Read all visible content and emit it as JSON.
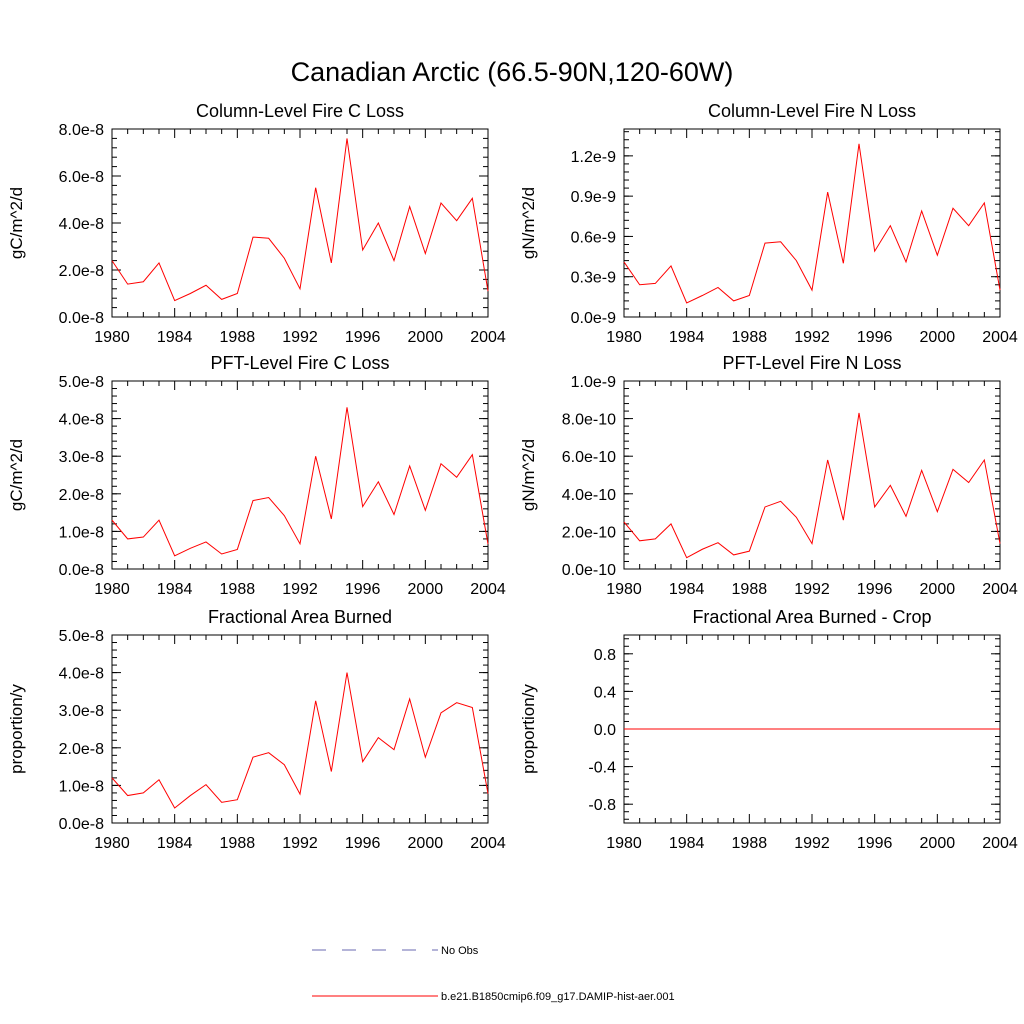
{
  "title": "Canadian Arctic (66.5-90N,120-60W)",
  "colors": {
    "model": "#ff0000",
    "obs": "#6a6ab0"
  },
  "legend": {
    "obs_label": "No Obs",
    "model_label": "b.e21.B1850cmip6.f09_g17.DAMIP-hist-aer.001"
  },
  "chart_data": [
    {
      "type": "line",
      "title": "Column-Level Fire C Loss",
      "ylabel": "gC/m^2/d",
      "xlim": [
        1980,
        2004
      ],
      "ylim": [
        0,
        8e-08
      ],
      "x_ticks": [
        1980,
        1984,
        1988,
        1992,
        1996,
        2000,
        2004
      ],
      "y_ticks": [
        "0.0e-8",
        "2.0e-8",
        "4.0e-8",
        "6.0e-8",
        "8.0e-8"
      ],
      "y_tick_values": [
        0,
        2e-08,
        4e-08,
        6e-08,
        8e-08
      ],
      "series": [
        {
          "x": [
            1980,
            1981,
            1982,
            1983,
            1984,
            1985,
            1986,
            1987,
            1988,
            1989,
            1990,
            1991,
            1992,
            1993,
            1994,
            1995,
            1996,
            1997,
            1998,
            1999,
            2000,
            2001,
            2002,
            2003,
            2004
          ],
          "values": [
            2.4e-08,
            1.4e-08,
            1.5e-08,
            2.3e-08,
            7e-09,
            1e-08,
            1.35e-08,
            7.5e-09,
            1e-08,
            3.4e-08,
            3.35e-08,
            2.5e-08,
            1.2e-08,
            5.5e-08,
            2.3e-08,
            7.6e-08,
            2.85e-08,
            4e-08,
            2.4e-08,
            4.7e-08,
            2.7e-08,
            4.85e-08,
            4.1e-08,
            5.05e-08,
            1.1e-08
          ]
        }
      ]
    },
    {
      "type": "line",
      "title": "Column-Level Fire N Loss",
      "ylabel": "gN/m^2/d",
      "xlim": [
        1980,
        2004
      ],
      "ylim": [
        0,
        1.4e-09
      ],
      "x_ticks": [
        1980,
        1984,
        1988,
        1992,
        1996,
        2000,
        2004
      ],
      "y_ticks": [
        "0.0e-9",
        "0.3e-9",
        "0.6e-9",
        "0.9e-9",
        "1.2e-9"
      ],
      "y_tick_values": [
        0,
        3e-10,
        6e-10,
        9e-10,
        1.2e-09
      ],
      "series": [
        {
          "x": [
            1980,
            1981,
            1982,
            1983,
            1984,
            1985,
            1986,
            1987,
            1988,
            1989,
            1990,
            1991,
            1992,
            1993,
            1994,
            1995,
            1996,
            1997,
            1998,
            1999,
            2000,
            2001,
            2002,
            2003,
            2004
          ],
          "values": [
            4.1e-10,
            2.4e-10,
            2.5e-10,
            3.8e-10,
            1.05e-10,
            1.6e-10,
            2.2e-10,
            1.2e-10,
            1.6e-10,
            5.5e-10,
            5.6e-10,
            4.2e-10,
            2e-10,
            9.3e-10,
            4e-10,
            1.29e-09,
            4.9e-10,
            6.8e-10,
            4.1e-10,
            7.9e-10,
            4.6e-10,
            8.1e-10,
            6.8e-10,
            8.5e-10,
            2e-10
          ]
        }
      ]
    },
    {
      "type": "line",
      "title": "PFT-Level Fire C Loss",
      "ylabel": "gC/m^2/d",
      "xlim": [
        1980,
        2004
      ],
      "ylim": [
        0,
        5e-08
      ],
      "x_ticks": [
        1980,
        1984,
        1988,
        1992,
        1996,
        2000,
        2004
      ],
      "y_ticks": [
        "0.0e-8",
        "1.0e-8",
        "2.0e-8",
        "3.0e-8",
        "4.0e-8",
        "5.0e-8"
      ],
      "y_tick_values": [
        0,
        1e-08,
        2e-08,
        3e-08,
        4e-08,
        5e-08
      ],
      "series": [
        {
          "x": [
            1980,
            1981,
            1982,
            1983,
            1984,
            1985,
            1986,
            1987,
            1988,
            1989,
            1990,
            1991,
            1992,
            1993,
            1994,
            1995,
            1996,
            1997,
            1998,
            1999,
            2000,
            2001,
            2002,
            2003,
            2004
          ],
          "values": [
            1.3e-08,
            8e-09,
            8.5e-09,
            1.3e-08,
            3.5e-09,
            5.5e-09,
            7.2e-09,
            4e-09,
            5.2e-09,
            1.82e-08,
            1.9e-08,
            1.42e-08,
            6.7e-09,
            3e-08,
            1.33e-08,
            4.3e-08,
            1.66e-08,
            2.32e-08,
            1.45e-08,
            2.74e-08,
            1.56e-08,
            2.8e-08,
            2.44e-08,
            3.04e-08,
            6.6e-09
          ]
        }
      ]
    },
    {
      "type": "line",
      "title": "PFT-Level Fire N Loss",
      "ylabel": "gN/m^2/d",
      "xlim": [
        1980,
        2004
      ],
      "ylim": [
        0,
        1e-09
      ],
      "x_ticks": [
        1980,
        1984,
        1988,
        1992,
        1996,
        2000,
        2004
      ],
      "y_ticks": [
        "0.0e-10",
        "2.0e-10",
        "4.0e-10",
        "6.0e-10",
        "8.0e-10",
        "1.0e-9"
      ],
      "y_tick_values": [
        0,
        2e-10,
        4e-10,
        6e-10,
        8e-10,
        1e-09
      ],
      "series": [
        {
          "x": [
            1980,
            1981,
            1982,
            1983,
            1984,
            1985,
            1986,
            1987,
            1988,
            1989,
            1990,
            1991,
            1992,
            1993,
            1994,
            1995,
            1996,
            1997,
            1998,
            1999,
            2000,
            2001,
            2002,
            2003,
            2004
          ],
          "values": [
            2.5e-10,
            1.5e-10,
            1.6e-10,
            2.4e-10,
            6e-11,
            1.05e-10,
            1.4e-10,
            7.5e-11,
            9.5e-11,
            3.3e-10,
            3.6e-10,
            2.75e-10,
            1.35e-10,
            5.8e-10,
            2.6e-10,
            8.3e-10,
            3.3e-10,
            4.45e-10,
            2.8e-10,
            5.25e-10,
            3.05e-10,
            5.3e-10,
            4.6e-10,
            5.8e-10,
            1.35e-10
          ]
        }
      ]
    },
    {
      "type": "line",
      "title": "Fractional Area Burned",
      "ylabel": "proportion/y",
      "xlim": [
        1980,
        2004
      ],
      "ylim": [
        0,
        5e-08
      ],
      "x_ticks": [
        1980,
        1984,
        1988,
        1992,
        1996,
        2000,
        2004
      ],
      "y_ticks": [
        "0.0e-8",
        "1.0e-8",
        "2.0e-8",
        "3.0e-8",
        "4.0e-8",
        "5.0e-8"
      ],
      "y_tick_values": [
        0,
        1e-08,
        2e-08,
        3e-08,
        4e-08,
        5e-08
      ],
      "series": [
        {
          "x": [
            1980,
            1981,
            1982,
            1983,
            1984,
            1985,
            1986,
            1987,
            1988,
            1989,
            1990,
            1991,
            1992,
            1993,
            1994,
            1995,
            1996,
            1997,
            1998,
            1999,
            2000,
            2001,
            2002,
            2003,
            2004
          ],
          "values": [
            1.2e-08,
            7.3e-09,
            8e-09,
            1.15e-08,
            4e-09,
            7.3e-09,
            1.02e-08,
            5.5e-09,
            6.2e-09,
            1.75e-08,
            1.87e-08,
            1.55e-08,
            7.7e-09,
            3.25e-08,
            1.37e-08,
            4e-08,
            1.63e-08,
            2.27e-08,
            1.95e-08,
            3.3e-08,
            1.75e-08,
            2.93e-08,
            3.2e-08,
            3.07e-08,
            7.8e-09
          ]
        }
      ]
    },
    {
      "type": "line",
      "title": "Fractional Area Burned - Crop",
      "ylabel": "proportion/y",
      "xlim": [
        1980,
        2004
      ],
      "ylim": [
        -1.0,
        1.0
      ],
      "x_ticks": [
        1980,
        1984,
        1988,
        1992,
        1996,
        2000,
        2004
      ],
      "y_ticks": [
        "-0.8",
        "-0.4",
        "0.0",
        "0.4",
        "0.8"
      ],
      "y_tick_values": [
        -0.8,
        -0.4,
        0.0,
        0.4,
        0.8
      ],
      "series": [
        {
          "x": [
            1980,
            2004
          ],
          "values": [
            0,
            0
          ]
        }
      ]
    }
  ]
}
